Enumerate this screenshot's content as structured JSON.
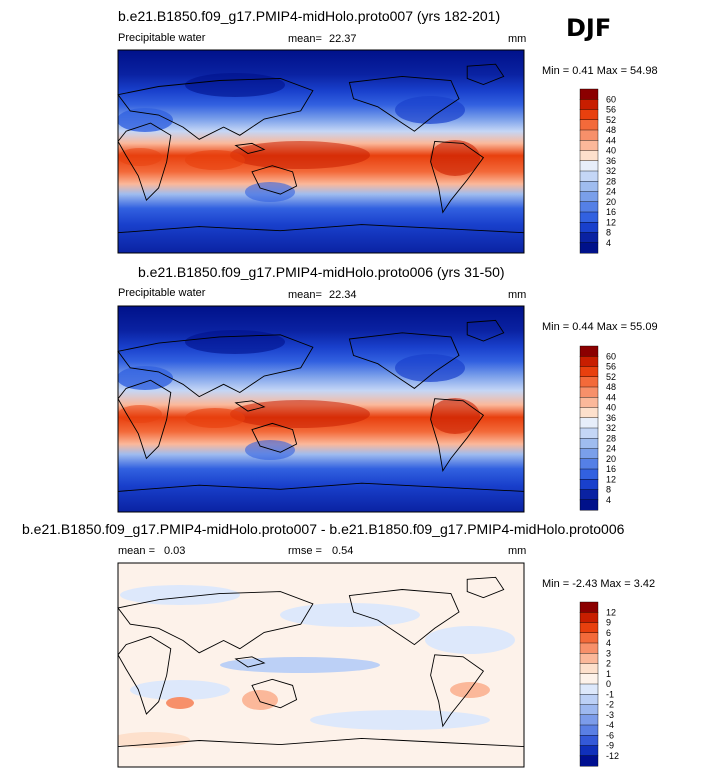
{
  "season": "DJF",
  "panels": [
    {
      "title": "b.e21.B1850.f09_g17.PMIP4-midHolo.proto007 (yrs 182-201)",
      "left_label": "Precipitable water",
      "mean_label": "mean=",
      "mean_value": "22.37",
      "units": "mm",
      "minmax": "Min =  0.41 Max = 54.98"
    },
    {
      "title": "b.e21.B1850.f09_g17.PMIP4-midHolo.proto006 (yrs 31-50)",
      "left_label": "Precipitable water",
      "mean_label": "mean=",
      "mean_value": "22.34",
      "units": "mm",
      "minmax": "Min =  0.44 Max = 55.09"
    },
    {
      "title": "b.e21.B1850.f09_g17.PMIP4-midHolo.proto007 - b.e21.B1850.f09_g17.PMIP4-midHolo.proto006",
      "mean_label": "mean =",
      "mean_value": "0.03",
      "rmse_label": "rmse =",
      "rmse_value": "0.54",
      "units": "mm",
      "minmax": "Min = -2.43 Max =  3.42"
    }
  ],
  "chart_data": [
    {
      "type": "heatmap",
      "title": "b.e21.B1850.f09_g17.PMIP4-midHolo.proto007 (yrs 182-201)",
      "variable": "Precipitable water",
      "units": "mm",
      "mean": 22.37,
      "min": 0.41,
      "max": 54.98,
      "colorbar_levels": [
        "60",
        "56",
        "52",
        "48",
        "44",
        "40",
        "36",
        "32",
        "28",
        "24",
        "20",
        "16",
        "12",
        "8",
        "4"
      ],
      "colorbar_colors": [
        "#8b0000",
        "#c81e00",
        "#e8400e",
        "#f36a3a",
        "#f7906a",
        "#fbb89a",
        "#fde0cc",
        "#e7eefa",
        "#c4d6f6",
        "#9fbcef",
        "#7a9fea",
        "#5580e6",
        "#3261e0",
        "#1940cc",
        "#0a22a2",
        "#00118a"
      ]
    },
    {
      "type": "heatmap",
      "title": "b.e21.B1850.f09_g17.PMIP4-midHolo.proto006 (yrs 31-50)",
      "variable": "Precipitable water",
      "units": "mm",
      "mean": 22.34,
      "min": 0.44,
      "max": 55.09,
      "colorbar_levels": [
        "60",
        "56",
        "52",
        "48",
        "44",
        "40",
        "36",
        "32",
        "28",
        "24",
        "20",
        "16",
        "12",
        "8",
        "4"
      ],
      "colorbar_colors": [
        "#8b0000",
        "#c81e00",
        "#e8400e",
        "#f36a3a",
        "#f7906a",
        "#fbb89a",
        "#fde0cc",
        "#e7eefa",
        "#c4d6f6",
        "#9fbcef",
        "#7a9fea",
        "#5580e6",
        "#3261e0",
        "#1940cc",
        "#0a22a2",
        "#00118a"
      ]
    },
    {
      "type": "heatmap",
      "title": "b.e21.B1850.f09_g17.PMIP4-midHolo.proto007 - b.e21.B1850.f09_g17.PMIP4-midHolo.proto006",
      "units": "mm",
      "mean": 0.03,
      "rmse": 0.54,
      "min": -2.43,
      "max": 3.42,
      "colorbar_levels": [
        "12",
        "9",
        "6",
        "4",
        "3",
        "2",
        "1",
        "0",
        "-1",
        "-2",
        "-3",
        "-4",
        "-6",
        "-9",
        "-12"
      ],
      "colorbar_colors": [
        "#8b0000",
        "#c81e00",
        "#e8400e",
        "#f36a3a",
        "#f7906a",
        "#fbb89a",
        "#fde0cc",
        "#fdf2ea",
        "#dde8fb",
        "#bcd0f6",
        "#9db8f0",
        "#7c9cea",
        "#5a7fe4",
        "#3459d8",
        "#1030bb",
        "#000f90"
      ]
    }
  ]
}
